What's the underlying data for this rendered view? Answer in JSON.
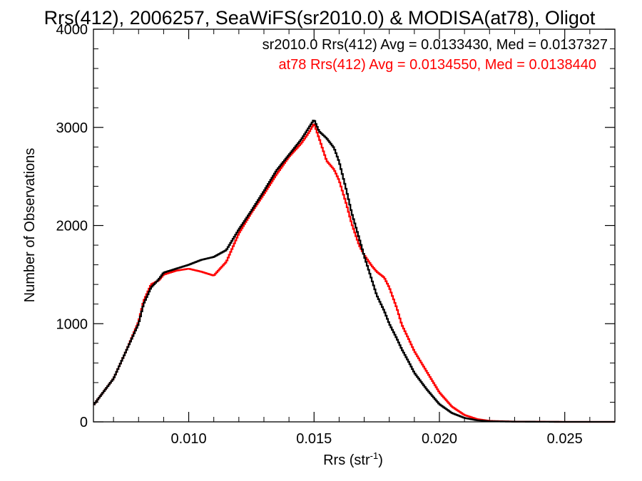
{
  "chart_data": {
    "type": "line",
    "title": "Rrs(412), 2006257, SeaWiFS(sr2010.0) & MODISA(at78), Oligot",
    "xlabel_main": "Rrs (str",
    "xlabel_sup": "-1",
    "xlabel_end": ")",
    "ylabel": "Number of Observations",
    "xlim": [
      0.0062,
      0.027
    ],
    "ylim": [
      0,
      4000
    ],
    "x_ticks": [
      0.01,
      0.015,
      0.02,
      0.025
    ],
    "x_tick_labels": [
      "0.010",
      "0.015",
      "0.020",
      "0.025"
    ],
    "y_ticks": [
      0,
      1000,
      2000,
      3000,
      4000
    ],
    "y_tick_labels": [
      "0",
      "1000",
      "2000",
      "3000",
      "4000"
    ],
    "legend_placement": "top-right",
    "colors": {
      "series1": "#000000",
      "series2": "#ff0000"
    },
    "series": [
      {
        "name": "sr2010.0",
        "legend": "sr2010.0 Rrs(412) Avg = 0.0133430, Med = 0.0137327",
        "x": [
          0.0062,
          0.007,
          0.0075,
          0.008,
          0.0082,
          0.0085,
          0.0088,
          0.009,
          0.0095,
          0.01,
          0.0105,
          0.011,
          0.0115,
          0.012,
          0.0125,
          0.013,
          0.0135,
          0.014,
          0.0145,
          0.0148,
          0.015,
          0.0152,
          0.0155,
          0.0158,
          0.016,
          0.0163,
          0.0165,
          0.0168,
          0.017,
          0.0173,
          0.0175,
          0.0178,
          0.018,
          0.0183,
          0.0185,
          0.0188,
          0.019,
          0.0195,
          0.02,
          0.0205,
          0.021,
          0.0215,
          0.022,
          0.023,
          0.025,
          0.027
        ],
        "y": [
          170,
          440,
          720,
          1000,
          1200,
          1370,
          1450,
          1520,
          1560,
          1600,
          1650,
          1680,
          1750,
          1960,
          2150,
          2350,
          2560,
          2720,
          2880,
          3000,
          3080,
          2960,
          2890,
          2790,
          2650,
          2350,
          2130,
          1870,
          1690,
          1450,
          1290,
          1130,
          1000,
          850,
          740,
          600,
          500,
          330,
          180,
          90,
          40,
          16,
          6,
          2,
          0,
          0
        ]
      },
      {
        "name": "at78",
        "legend": "at78 Rrs(412) Avg = 0.0134550, Med = 0.0138440",
        "x": [
          0.0062,
          0.007,
          0.0075,
          0.008,
          0.0082,
          0.0085,
          0.0088,
          0.009,
          0.0095,
          0.01,
          0.0105,
          0.011,
          0.0115,
          0.012,
          0.0125,
          0.013,
          0.0135,
          0.014,
          0.0145,
          0.0148,
          0.015,
          0.0152,
          0.0155,
          0.0158,
          0.016,
          0.0163,
          0.0165,
          0.0168,
          0.017,
          0.0173,
          0.0175,
          0.0178,
          0.018,
          0.0183,
          0.0185,
          0.0188,
          0.019,
          0.0195,
          0.02,
          0.0205,
          0.021,
          0.0215,
          0.022,
          0.023,
          0.025,
          0.027
        ],
        "y": [
          170,
          440,
          720,
          1020,
          1230,
          1400,
          1440,
          1500,
          1540,
          1560,
          1530,
          1490,
          1630,
          1920,
          2130,
          2320,
          2520,
          2700,
          2840,
          2950,
          3040,
          2890,
          2660,
          2570,
          2460,
          2210,
          2020,
          1800,
          1700,
          1590,
          1530,
          1470,
          1370,
          1160,
          990,
          830,
          720,
          510,
          300,
          155,
          70,
          28,
          10,
          3,
          0,
          0
        ]
      }
    ]
  }
}
